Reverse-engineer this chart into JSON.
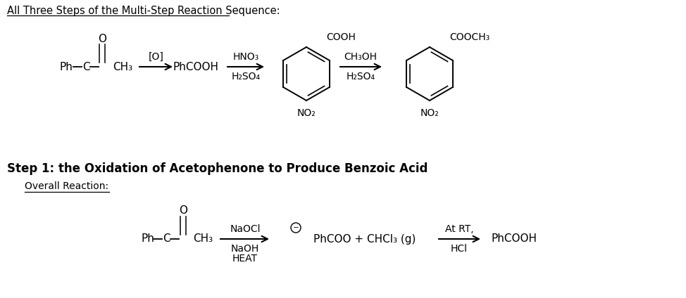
{
  "title": "All Three Steps of the Multi-Step Reaction Sequence:",
  "step1_label": "Step 1: the Oxidation of Acetophenone to Produce Benzoic Acid",
  "overall_label": "Overall Reaction:",
  "bg_color": "#ffffff",
  "text_color": "#000000",
  "font_size_main": 11,
  "font_size_small": 10,
  "font_size_title": 10.5
}
